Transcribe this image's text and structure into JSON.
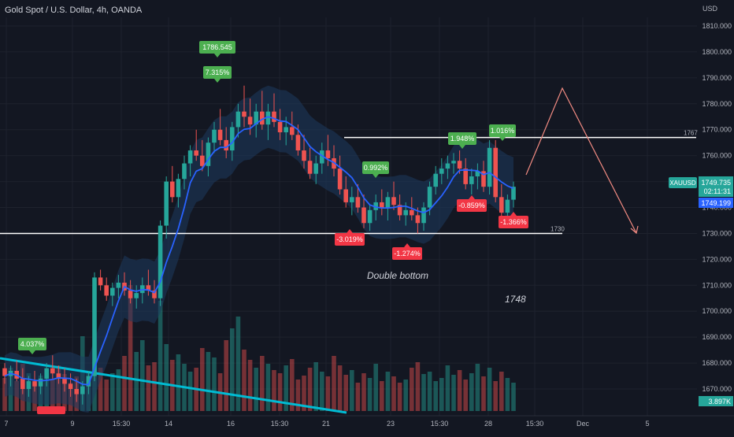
{
  "header": {
    "title": "Gold Spot / U.S. Dollar, 4h, OANDA",
    "currency": "USD"
  },
  "colors": {
    "background": "#131722",
    "up": "#26a69a",
    "down": "#ef5350",
    "label_up": "#4caf50",
    "label_down": "#f23645",
    "moving_average": "#2962ff",
    "band_fill": "#1e3a5f",
    "trendline": "#00bcd4",
    "projection": "#f28b82",
    "level_line": "#ffffff"
  },
  "chart_data": {
    "type": "candlestick",
    "symbol": "XAUUSD",
    "y_axis": {
      "ticks": [
        "1810.000",
        "1800.000",
        "1790.000",
        "1780.000",
        "1770.000",
        "1760.000",
        "1750.000",
        "1740.000",
        "1730.000",
        "1720.000",
        "1710.000",
        "1700.000",
        "1690.000",
        "1680.000",
        "1670.000"
      ],
      "range": [
        1662,
        1815
      ]
    },
    "x_axis": {
      "ticks": [
        "7",
        "9",
        "15:30",
        "14",
        "16",
        "15:30",
        "21",
        "23",
        "15:30",
        "28",
        "15:30",
        "Dec",
        "5"
      ]
    },
    "last_price": "1749.735",
    "countdown": "02:11:31",
    "ma_value": "1749.199",
    "volume_value": "3.897K",
    "price_levels": [
      {
        "value": 1767,
        "label": "1767"
      },
      {
        "value": 1730,
        "label": "1730"
      }
    ],
    "labels": [
      {
        "text": "1786.545",
        "kind": "up"
      },
      {
        "text": "7.315%",
        "kind": "up"
      },
      {
        "text": "4.037%",
        "kind": "up"
      },
      {
        "text": "0.992%",
        "kind": "up"
      },
      {
        "text": "1.948%",
        "kind": "up"
      },
      {
        "text": "1.016%",
        "kind": "up"
      },
      {
        "text": "-3.019%",
        "kind": "down"
      },
      {
        "text": "-1.274%",
        "kind": "down"
      },
      {
        "text": "-0.859%",
        "kind": "down"
      },
      {
        "text": "-1.366%",
        "kind": "down"
      }
    ],
    "annotations": [
      "Double bottom",
      "1748"
    ],
    "candles": [
      [
        1678,
        1680,
        1672,
        1675
      ],
      [
        1675,
        1679,
        1671,
        1677
      ],
      [
        1677,
        1681,
        1673,
        1674
      ],
      [
        1674,
        1678,
        1668,
        1670
      ],
      [
        1670,
        1675,
        1667,
        1673
      ],
      [
        1673,
        1677,
        1669,
        1671
      ],
      [
        1671,
        1676,
        1668,
        1674
      ],
      [
        1674,
        1680,
        1671,
        1678
      ],
      [
        1678,
        1683,
        1674,
        1676
      ],
      [
        1676,
        1679,
        1672,
        1674
      ],
      [
        1674,
        1678,
        1669,
        1672
      ],
      [
        1672,
        1676,
        1667,
        1670
      ],
      [
        1670,
        1674,
        1665,
        1668
      ],
      [
        1668,
        1673,
        1664,
        1671
      ],
      [
        1671,
        1677,
        1668,
        1675
      ],
      [
        1675,
        1715,
        1673,
        1713
      ],
      [
        1713,
        1716,
        1708,
        1710
      ],
      [
        1710,
        1713,
        1704,
        1706
      ],
      [
        1706,
        1711,
        1702,
        1709
      ],
      [
        1709,
        1714,
        1705,
        1711
      ],
      [
        1711,
        1715,
        1706,
        1708
      ],
      [
        1708,
        1712,
        1703,
        1705
      ],
      [
        1705,
        1710,
        1701,
        1707
      ],
      [
        1707,
        1713,
        1703,
        1710
      ],
      [
        1710,
        1716,
        1706,
        1708
      ],
      [
        1708,
        1712,
        1703,
        1705
      ],
      [
        1705,
        1735,
        1702,
        1733
      ],
      [
        1733,
        1752,
        1728,
        1750
      ],
      [
        1750,
        1756,
        1742,
        1744
      ],
      [
        1744,
        1753,
        1740,
        1751
      ],
      [
        1751,
        1760,
        1747,
        1757
      ],
      [
        1757,
        1764,
        1752,
        1762
      ],
      [
        1762,
        1770,
        1758,
        1760
      ],
      [
        1760,
        1766,
        1754,
        1756
      ],
      [
        1756,
        1767,
        1752,
        1765
      ],
      [
        1765,
        1773,
        1761,
        1770
      ],
      [
        1770,
        1778,
        1764,
        1766
      ],
      [
        1766,
        1771,
        1759,
        1762
      ],
      [
        1762,
        1773,
        1758,
        1771
      ],
      [
        1771,
        1780,
        1767,
        1777
      ],
      [
        1777,
        1787,
        1771,
        1775
      ],
      [
        1775,
        1782,
        1768,
        1772
      ],
      [
        1772,
        1780,
        1767,
        1777
      ],
      [
        1777,
        1785,
        1770,
        1772
      ],
      [
        1772,
        1780,
        1766,
        1777
      ],
      [
        1777,
        1784,
        1771,
        1773
      ],
      [
        1773,
        1778,
        1766,
        1769
      ],
      [
        1769,
        1775,
        1764,
        1771
      ],
      [
        1771,
        1777,
        1766,
        1768
      ],
      [
        1768,
        1772,
        1760,
        1762
      ],
      [
        1762,
        1768,
        1755,
        1758
      ],
      [
        1758,
        1763,
        1751,
        1753
      ],
      [
        1753,
        1760,
        1749,
        1757
      ],
      [
        1757,
        1765,
        1753,
        1762
      ],
      [
        1762,
        1768,
        1756,
        1759
      ],
      [
        1759,
        1764,
        1752,
        1755
      ],
      [
        1755,
        1760,
        1745,
        1747
      ],
      [
        1747,
        1752,
        1740,
        1742
      ],
      [
        1742,
        1748,
        1737,
        1744
      ],
      [
        1744,
        1749,
        1738,
        1740
      ],
      [
        1740,
        1745,
        1732,
        1734
      ],
      [
        1734,
        1741,
        1731,
        1739
      ],
      [
        1739,
        1745,
        1735,
        1742
      ],
      [
        1742,
        1747,
        1737,
        1740
      ],
      [
        1740,
        1746,
        1735,
        1744
      ],
      [
        1744,
        1750,
        1739,
        1741
      ],
      [
        1741,
        1745,
        1735,
        1737
      ],
      [
        1737,
        1742,
        1733,
        1739
      ],
      [
        1739,
        1744,
        1735,
        1737
      ],
      [
        1737,
        1740,
        1730,
        1734
      ],
      [
        1734,
        1742,
        1731,
        1740
      ],
      [
        1740,
        1750,
        1737,
        1748
      ],
      [
        1748,
        1756,
        1745,
        1753
      ],
      [
        1753,
        1759,
        1749,
        1755
      ],
      [
        1755,
        1760,
        1751,
        1757
      ],
      [
        1757,
        1761,
        1753,
        1758
      ],
      [
        1758,
        1762,
        1753,
        1755
      ],
      [
        1755,
        1759,
        1747,
        1749
      ],
      [
        1749,
        1755,
        1745,
        1752
      ],
      [
        1752,
        1757,
        1747,
        1754
      ],
      [
        1754,
        1758,
        1746,
        1748
      ],
      [
        1748,
        1766,
        1745,
        1763
      ],
      [
        1763,
        1766,
        1742,
        1744
      ],
      [
        1744,
        1749,
        1736,
        1738
      ],
      [
        1738,
        1745,
        1735,
        1743
      ],
      [
        1743,
        1750,
        1740,
        1748
      ]
    ],
    "volumes": [
      42,
      55,
      38,
      60,
      48,
      35,
      45,
      52,
      40,
      58,
      47,
      36,
      44,
      95,
      50,
      62,
      55,
      40,
      48,
      53,
      70,
      160,
      75,
      90,
      58,
      62,
      140,
      85,
      65,
      72,
      60,
      50,
      55,
      80,
      75,
      68,
      48,
      90,
      105,
      120,
      78,
      65,
      55,
      70,
      60,
      52,
      48,
      58,
      66,
      40,
      45,
      55,
      62,
      50,
      44,
      70,
      58,
      46,
      52,
      36,
      48,
      42,
      60,
      38,
      50,
      44,
      36,
      40,
      55,
      62,
      47,
      50,
      38,
      42,
      58,
      46,
      52,
      40,
      48,
      60,
      44,
      55,
      38,
      50,
      42,
      36
    ]
  }
}
